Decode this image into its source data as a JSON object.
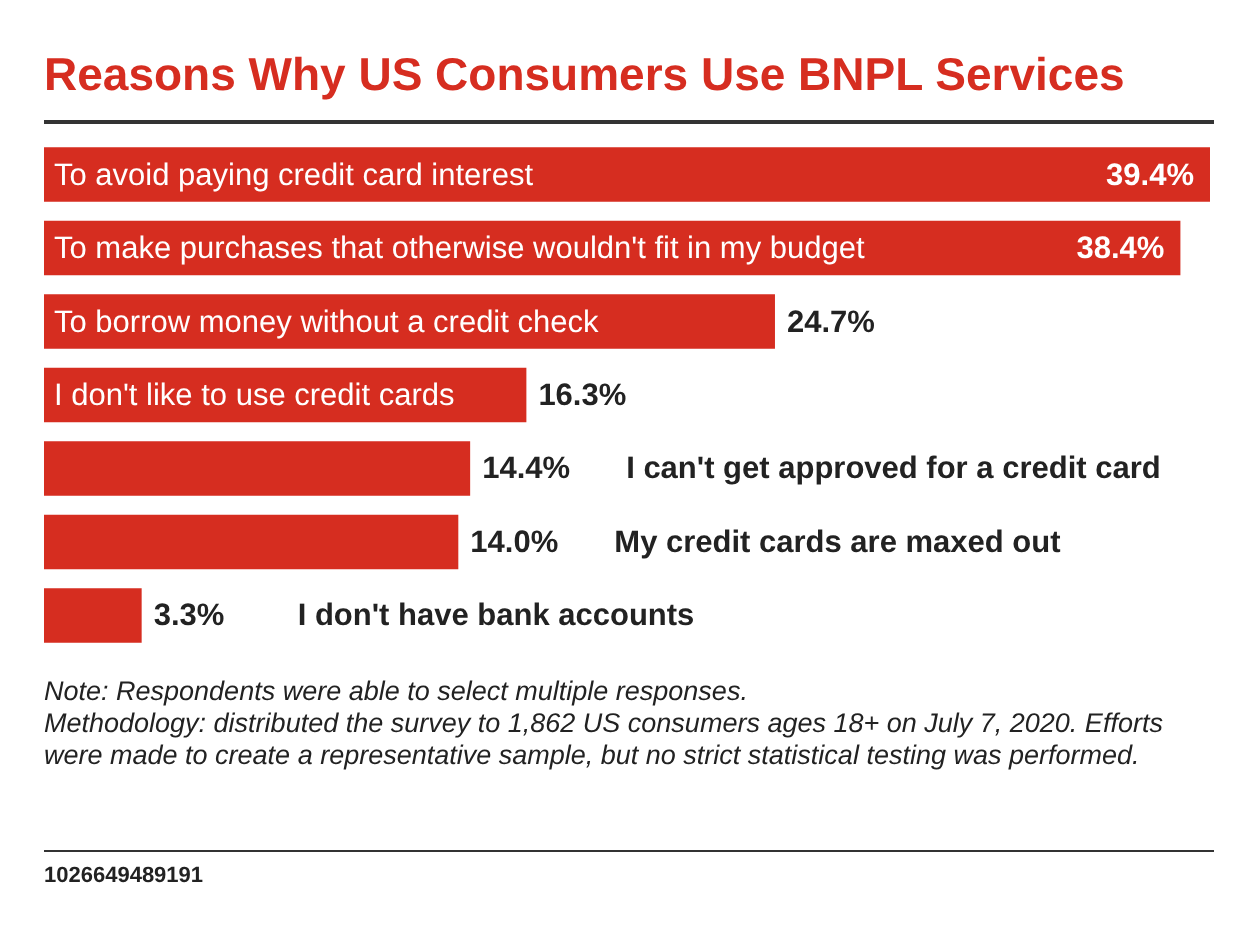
{
  "chart_data": {
    "type": "bar",
    "orientation": "horizontal",
    "title": "Reasons Why US Consumers Use BNPL Services",
    "categories": [
      "To avoid paying credit card interest",
      "To make purchases that otherwise wouldn't fit in my budget",
      "To borrow money without a credit check",
      "I don't like to use credit cards",
      "I can't get approved for a credit card",
      "My credit cards are maxed out",
      "I don't have bank accounts"
    ],
    "values": [
      39.4,
      38.4,
      24.7,
      16.3,
      14.4,
      14.0,
      3.3
    ],
    "value_labels": [
      "39.4%",
      "38.4%",
      "24.7%",
      "16.3%",
      "14.4%",
      "14.0%",
      "3.3%"
    ],
    "color": "#d62d20",
    "annotations": [
      "Note: Respondents were able to select multiple responses.",
      "Methodology: distributed the survey to 1,862 US consumers ages 18+ on July 7, 2020. Efforts were made to create a representative sample, but no strict statistical testing was performed.",
      "1026649489191"
    ]
  }
}
